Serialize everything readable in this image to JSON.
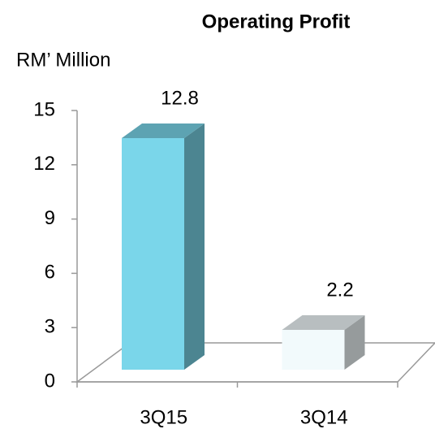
{
  "chart_data": {
    "type": "bar3d",
    "title": "Operating Profit",
    "y_label": "RM’ Million",
    "categories": [
      "3Q15",
      "3Q14"
    ],
    "values": [
      12.8,
      2.2
    ],
    "value_labels": [
      "12.8",
      "2.2"
    ],
    "colors": [
      "#7ad6ea",
      "#f2fafc"
    ],
    "ylim": [
      0,
      15
    ],
    "yticks": [
      0,
      3,
      6,
      9,
      12,
      15
    ]
  }
}
